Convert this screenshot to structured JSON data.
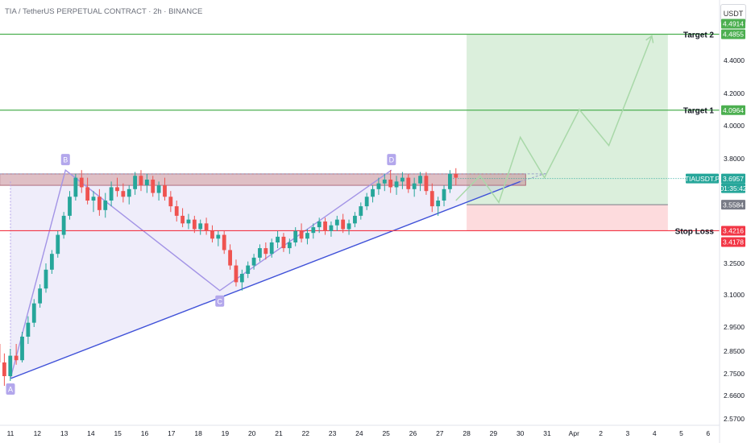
{
  "header": {
    "title": "TIA / TetherUS PERPETUAL CONTRACT · 2h · BINANCE",
    "currency": "USDT"
  },
  "chart_data": {
    "type": "candlestick",
    "ylim": [
      2.55,
      4.55
    ],
    "y_ticks": [
      "4.4000",
      "4.2000",
      "4.0000",
      "3.8000",
      "3.2500",
      "3.1000",
      "2.9500",
      "2.8500",
      "2.7500",
      "2.6600",
      "2.5700"
    ],
    "y_tick_values": [
      4.4,
      4.2,
      4.0,
      3.8,
      3.25,
      3.1,
      2.95,
      2.85,
      2.75,
      2.66,
      2.57
    ],
    "x_ticks": [
      "11",
      "12",
      "13",
      "14",
      "15",
      "16",
      "17",
      "18",
      "19",
      "20",
      "21",
      "22",
      "23",
      "24",
      "25",
      "26",
      "27",
      "28",
      "29",
      "30",
      "31",
      "Apr",
      "2",
      "3",
      "4",
      "5",
      "6"
    ],
    "x_tick_days": [
      11,
      12,
      13,
      14,
      15,
      16,
      17,
      18,
      19,
      20,
      21,
      22,
      23,
      24,
      25,
      26,
      27,
      28,
      29,
      30,
      31,
      32,
      33,
      34,
      35,
      36,
      37
    ],
    "pattern_points": [
      {
        "label": "A",
        "day": 11.0,
        "price": 2.73
      },
      {
        "label": "B",
        "day": 13.05,
        "price": 3.74
      },
      {
        "label": "C",
        "day": 18.8,
        "price": 3.12
      },
      {
        "label": "D",
        "day": 25.2,
        "price": 3.74
      }
    ],
    "trendline": {
      "from": {
        "day": 11.0,
        "price": 2.73
      },
      "to": {
        "day": 30.0,
        "price": 3.68
      }
    },
    "resistance_zone": {
      "top": 3.72,
      "bottom": 3.66,
      "from_day": 10.6,
      "to_day": 30.2
    },
    "position": {
      "from_day": 28.0,
      "to_day": 35.5,
      "entry": 3.5584,
      "target": 4.4855,
      "stop": 3.4216
    },
    "levels": [
      {
        "label": "Target 2",
        "price": 4.4855,
        "color": "#4caf50"
      },
      {
        "label": "Target 1",
        "price": 4.0964,
        "color": "#4caf50"
      },
      {
        "label": "Stop Loss",
        "price": 3.4216,
        "color": "#f23645"
      }
    ],
    "price_tags": [
      {
        "text": "4.4914",
        "price": 4.4914,
        "color": "#4caf50"
      },
      {
        "text": "4.4855",
        "price": 4.4855,
        "color": "#4caf50"
      },
      {
        "text": "4.0964",
        "price": 4.0964,
        "color": "#4caf50"
      },
      {
        "text": "TIAUSDT.P",
        "price": 3.6957,
        "color": "#26a69a",
        "left": true
      },
      {
        "text": "3.6957",
        "price": 3.6957,
        "color": "#26a69a"
      },
      {
        "text": "01:35:42",
        "price": 3.6957,
        "color": "#26a69a",
        "below": true
      },
      {
        "text": "3.5584",
        "price": 3.5584,
        "color": "#787b86"
      },
      {
        "text": "3.4216",
        "price": 3.4216,
        "color": "#f23645"
      },
      {
        "text": "3.4178",
        "price": 3.4178,
        "color": "#f23645"
      }
    ],
    "projection": [
      {
        "day": 27.6,
        "price": 3.58
      },
      {
        "day": 28.5,
        "price": 3.71
      },
      {
        "day": 29.2,
        "price": 3.57
      },
      {
        "day": 30.0,
        "price": 3.93
      },
      {
        "day": 30.9,
        "price": 3.7
      },
      {
        "day": 32.2,
        "price": 4.1
      },
      {
        "day": 33.3,
        "price": 3.88
      },
      {
        "day": 34.9,
        "price": 4.48
      }
    ],
    "last_price": 3.6957,
    "candles": [
      [
        2.88,
        2.95,
        2.75,
        2.8
      ],
      [
        2.8,
        2.84,
        2.7,
        2.74
      ],
      [
        2.74,
        2.86,
        2.72,
        2.83
      ],
      [
        2.83,
        2.88,
        2.79,
        2.81
      ],
      [
        2.81,
        2.93,
        2.8,
        2.91
      ],
      [
        2.91,
        3.0,
        2.88,
        2.97
      ],
      [
        2.97,
        3.08,
        2.95,
        3.06
      ],
      [
        3.06,
        3.15,
        3.04,
        3.13
      ],
      [
        3.13,
        3.25,
        3.11,
        3.22
      ],
      [
        3.22,
        3.32,
        3.2,
        3.3
      ],
      [
        3.3,
        3.42,
        3.28,
        3.4
      ],
      [
        3.4,
        3.52,
        3.38,
        3.5
      ],
      [
        3.5,
        3.63,
        3.48,
        3.6
      ],
      [
        3.6,
        3.72,
        3.58,
        3.7
      ],
      [
        3.7,
        3.74,
        3.62,
        3.65
      ],
      [
        3.65,
        3.7,
        3.56,
        3.58
      ],
      [
        3.58,
        3.63,
        3.52,
        3.6
      ],
      [
        3.6,
        3.64,
        3.5,
        3.53
      ],
      [
        3.53,
        3.62,
        3.49,
        3.58
      ],
      [
        3.58,
        3.68,
        3.55,
        3.65
      ],
      [
        3.65,
        3.7,
        3.6,
        3.63
      ],
      [
        3.63,
        3.67,
        3.57,
        3.6
      ],
      [
        3.6,
        3.66,
        3.56,
        3.64
      ],
      [
        3.64,
        3.73,
        3.61,
        3.71
      ],
      [
        3.71,
        3.74,
        3.63,
        3.66
      ],
      [
        3.66,
        3.72,
        3.62,
        3.69
      ],
      [
        3.69,
        3.71,
        3.6,
        3.62
      ],
      [
        3.62,
        3.68,
        3.58,
        3.66
      ],
      [
        3.66,
        3.7,
        3.58,
        3.6
      ],
      [
        3.6,
        3.63,
        3.52,
        3.55
      ],
      [
        3.55,
        3.58,
        3.47,
        3.5
      ],
      [
        3.5,
        3.54,
        3.44,
        3.46
      ],
      [
        3.46,
        3.51,
        3.43,
        3.48
      ],
      [
        3.48,
        3.5,
        3.41,
        3.43
      ],
      [
        3.43,
        3.48,
        3.4,
        3.46
      ],
      [
        3.46,
        3.49,
        3.4,
        3.42
      ],
      [
        3.42,
        3.45,
        3.36,
        3.38
      ],
      [
        3.38,
        3.42,
        3.34,
        3.4
      ],
      [
        3.4,
        3.42,
        3.3,
        3.32
      ],
      [
        3.32,
        3.35,
        3.22,
        3.24
      ],
      [
        3.24,
        3.27,
        3.14,
        3.16
      ],
      [
        3.16,
        3.22,
        3.12,
        3.2
      ],
      [
        3.2,
        3.26,
        3.18,
        3.24
      ],
      [
        3.24,
        3.3,
        3.22,
        3.28
      ],
      [
        3.28,
        3.35,
        3.26,
        3.33
      ],
      [
        3.33,
        3.36,
        3.27,
        3.3
      ],
      [
        3.3,
        3.38,
        3.28,
        3.36
      ],
      [
        3.36,
        3.42,
        3.33,
        3.39
      ],
      [
        3.39,
        3.41,
        3.31,
        3.33
      ],
      [
        3.33,
        3.38,
        3.3,
        3.36
      ],
      [
        3.36,
        3.44,
        3.34,
        3.42
      ],
      [
        3.42,
        3.46,
        3.36,
        3.38
      ],
      [
        3.38,
        3.43,
        3.35,
        3.41
      ],
      [
        3.41,
        3.46,
        3.38,
        3.44
      ],
      [
        3.44,
        3.49,
        3.41,
        3.47
      ],
      [
        3.47,
        3.49,
        3.4,
        3.42
      ],
      [
        3.42,
        3.47,
        3.39,
        3.45
      ],
      [
        3.45,
        3.5,
        3.42,
        3.48
      ],
      [
        3.48,
        3.51,
        3.41,
        3.43
      ],
      [
        3.43,
        3.48,
        3.4,
        3.46
      ],
      [
        3.46,
        3.52,
        3.44,
        3.5
      ],
      [
        3.5,
        3.57,
        3.48,
        3.55
      ],
      [
        3.55,
        3.62,
        3.53,
        3.6
      ],
      [
        3.6,
        3.66,
        3.57,
        3.64
      ],
      [
        3.64,
        3.7,
        3.61,
        3.67
      ],
      [
        3.67,
        3.72,
        3.63,
        3.69
      ],
      [
        3.69,
        3.74,
        3.62,
        3.65
      ],
      [
        3.65,
        3.71,
        3.61,
        3.68
      ],
      [
        3.68,
        3.73,
        3.64,
        3.7
      ],
      [
        3.7,
        3.72,
        3.62,
        3.64
      ],
      [
        3.64,
        3.7,
        3.6,
        3.67
      ],
      [
        3.67,
        3.73,
        3.63,
        3.71
      ],
      [
        3.71,
        3.73,
        3.61,
        3.63
      ],
      [
        3.63,
        3.67,
        3.52,
        3.55
      ],
      [
        3.55,
        3.6,
        3.5,
        3.58
      ],
      [
        3.58,
        3.66,
        3.55,
        3.64
      ],
      [
        3.64,
        3.74,
        3.62,
        3.72
      ],
      [
        3.72,
        3.75,
        3.66,
        3.7
      ]
    ]
  }
}
